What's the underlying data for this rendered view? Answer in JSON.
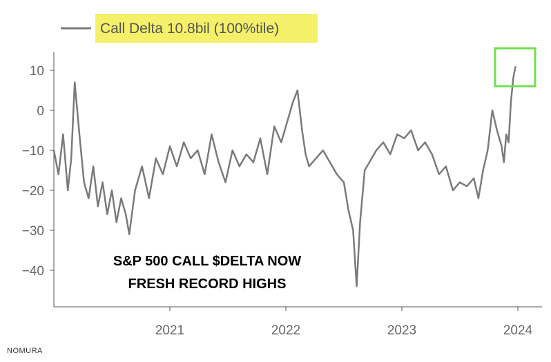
{
  "chart_data": {
    "type": "line",
    "series": [
      {
        "name": "Call Delta 10.8bil (100%tile)",
        "x": [
          2020.0,
          2020.04,
          2020.08,
          2020.12,
          2020.15,
          2020.18,
          2020.22,
          2020.26,
          2020.3,
          2020.34,
          2020.38,
          2020.42,
          2020.46,
          2020.5,
          2020.54,
          2020.58,
          2020.62,
          2020.65,
          2020.7,
          2020.76,
          2020.82,
          2020.88,
          2020.94,
          2021.0,
          2021.06,
          2021.12,
          2021.18,
          2021.24,
          2021.3,
          2021.36,
          2021.42,
          2021.48,
          2021.54,
          2021.6,
          2021.66,
          2021.72,
          2021.78,
          2021.84,
          2021.9,
          2021.96,
          2022.02,
          2022.06,
          2022.1,
          2022.14,
          2022.17,
          2022.2,
          2022.26,
          2022.32,
          2022.38,
          2022.44,
          2022.5,
          2022.54,
          2022.58,
          2022.61,
          2022.64,
          2022.68,
          2022.72,
          2022.78,
          2022.84,
          2022.9,
          2022.96,
          2023.02,
          2023.08,
          2023.14,
          2023.2,
          2023.26,
          2023.32,
          2023.38,
          2023.44,
          2023.5,
          2023.56,
          2023.62,
          2023.66,
          2023.7,
          2023.74,
          2023.78,
          2023.82,
          2023.86,
          2023.88,
          2023.9,
          2023.92,
          2023.94,
          2023.96,
          2023.98
        ],
        "values": [
          -10,
          -16,
          -6,
          -20,
          -12,
          7,
          -6,
          -18,
          -22,
          -14,
          -24,
          -18,
          -26,
          -20,
          -28,
          -22,
          -26,
          -31,
          -20,
          -14,
          -22,
          -12,
          -16,
          -9,
          -14,
          -8,
          -12,
          -10,
          -16,
          -6,
          -13,
          -18,
          -10,
          -14,
          -11,
          -13,
          -7,
          -16,
          -4,
          -8,
          -2,
          2,
          5,
          -5,
          -11,
          -14,
          -12,
          -10,
          -13,
          -16,
          -18,
          -25,
          -30,
          -44,
          -28,
          -15,
          -13,
          -10,
          -8,
          -11,
          -6,
          -7,
          -5,
          -10,
          -8,
          -11,
          -16,
          -14,
          -20,
          -18,
          -19,
          -17,
          -22,
          -15,
          -10,
          0,
          -5,
          -9,
          -13,
          -6,
          -8,
          2,
          8,
          11
        ]
      }
    ],
    "xlim": [
      2020.0,
      2024.2
    ],
    "ylim": [
      -48,
      16
    ],
    "y_ticks": [
      10,
      0,
      -10,
      -20,
      -30,
      -40
    ],
    "y_tick_labels": [
      "10",
      "0",
      "−10",
      "−20",
      "−30",
      "−40"
    ],
    "x_ticks": [
      2021,
      2022,
      2023,
      2024
    ],
    "x_tick_labels": [
      "2021",
      "2022",
      "2023",
      "2024"
    ],
    "grid": false,
    "legend_position": "top-left",
    "line_color": "#7a7a7a",
    "legend_highlight_color": "#f4f06a",
    "callout_box_color": "#6ee04f",
    "annotation_lines": [
      "S&P 500 CALL $DELTA NOW",
      "FRESH RECORD HIGHS"
    ]
  },
  "source_label": "NOMURA"
}
